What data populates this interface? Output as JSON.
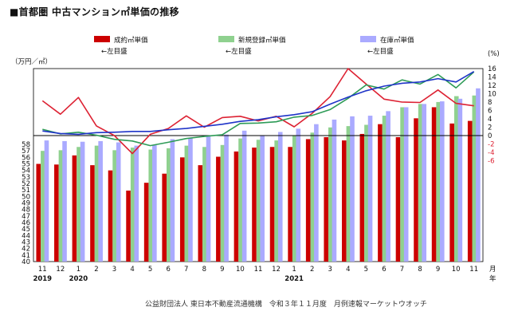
{
  "chart_title": "■首都圏 中古マンション㎡単価の推移",
  "source_note": "公益財団法人 東日本不動産流通機構　令和３年１１月度　月例速報マーケットウオッチ",
  "colors": {
    "contract": "#cc0000",
    "new_listing": "#8fd18f",
    "inventory": "#aaaaff",
    "contract_line": "#dd2233",
    "new_line": "#2e9b57",
    "inventory_line": "#1f34c8",
    "axis": "#000000",
    "zero_line": "#000000"
  },
  "chart_data": {
    "type": "bar",
    "title": "■首都圏 中古マンション㎡単価の推移",
    "y_left_unit": "（万円／㎡）",
    "y_right_unit": "(%)",
    "ylim_left": [
      40,
      58
    ],
    "ylim_right": [
      -6,
      16
    ],
    "ticks_left": [
      "40",
      "41",
      "42",
      "43",
      "44",
      "45",
      "46",
      "47",
      "48",
      "49",
      "50",
      "51",
      "52",
      "53",
      "54",
      "55",
      "56",
      "57",
      "58"
    ],
    "ticks_right": [
      "16",
      "14",
      "12",
      "10",
      "8",
      "6",
      "4",
      "2",
      "0",
      "-2",
      "-4",
      "-6"
    ],
    "categories": [
      "11",
      "12",
      "1",
      "2",
      "3",
      "4",
      "5",
      "6",
      "7",
      "8",
      "9",
      "10",
      "11",
      "12",
      "1",
      "2",
      "3",
      "4",
      "5",
      "6",
      "7",
      "8",
      "9",
      "10",
      "11"
    ],
    "year_labels": [
      {
        "label": "2019",
        "index": 0
      },
      {
        "label": "2020",
        "index": 2
      },
      {
        "label": "2021",
        "index": 14
      }
    ],
    "month_suffix": "月",
    "year_suffix": "年",
    "legend": [
      {
        "label": "成約㎡単価",
        "sub": "←左目盛",
        "kind": "bar",
        "color_key": "contract"
      },
      {
        "label": "新規登録㎡単価",
        "sub": "←左目盛",
        "kind": "bar",
        "color_key": "new_listing"
      },
      {
        "label": "在庫㎡単価",
        "sub": "←左目盛",
        "kind": "bar",
        "color_key": "inventory"
      }
    ],
    "bar_series": [
      {
        "name": "成約㎡単価",
        "color_key": "contract",
        "values": [
          55.0,
          54.9,
          56.3,
          54.8,
          54.0,
          50.9,
          52.1,
          53.5,
          56.0,
          54.8,
          56.1,
          56.9,
          57.5,
          57.6,
          57.6,
          58.8,
          59.1,
          58.6,
          59.6,
          61.1,
          59.1,
          62.0,
          63.7,
          61.2,
          61.6
        ]
      },
      {
        "name": "新規登録㎡単価",
        "color_key": "new_listing",
        "values": [
          57.0,
          57.1,
          57.6,
          57.8,
          57.1,
          57.5,
          57.2,
          57.4,
          57.8,
          57.6,
          57.9,
          58.9,
          58.7,
          58.6,
          59.3,
          59.8,
          60.6,
          60.8,
          61.0,
          62.4,
          63.7,
          64.2,
          64.5,
          65.4,
          65.5
        ]
      },
      {
        "name": "在庫㎡単価",
        "color_key": "inventory",
        "values": [
          58.6,
          58.5,
          58.4,
          58.5,
          58.3,
          57.8,
          57.9,
          58.8,
          59.0,
          59.2,
          59.5,
          60.1,
          59.4,
          59.9,
          60.4,
          61.1,
          61.8,
          62.3,
          62.4,
          63.1,
          63.7,
          64.2,
          64.6,
          65.0,
          66.6
        ]
      }
    ],
    "line_series": [
      {
        "color_key": "contract_line",
        "values": [
          8.3,
          5.1,
          9.1,
          2.3,
          0.0,
          -4.3,
          0.3,
          1.7,
          4.7,
          2.0,
          4.3,
          4.6,
          3.5,
          4.6,
          2.1,
          5.3,
          9.3,
          16.0,
          12.3,
          8.7,
          8.0,
          7.9,
          10.9,
          7.7,
          7.1
        ]
      },
      {
        "color_key": "new_line",
        "values": [
          1.5,
          0.4,
          0.8,
          0.1,
          -0.9,
          -1.3,
          -2.4,
          -1.6,
          -0.7,
          -0.2,
          0.2,
          2.9,
          3.0,
          3.3,
          4.4,
          4.8,
          6.2,
          8.9,
          12.1,
          11.1,
          13.3,
          12.3,
          14.6,
          11.4,
          15.2
        ]
      },
      {
        "color_key": "inventory_line",
        "values": [
          1.1,
          0.5,
          0.3,
          0.7,
          0.8,
          1.0,
          1.0,
          1.4,
          1.7,
          2.2,
          2.7,
          3.4,
          3.8,
          4.5,
          5.0,
          5.7,
          7.5,
          9.2,
          10.7,
          11.8,
          12.5,
          12.8,
          13.6,
          12.8,
          15.3
        ]
      }
    ]
  }
}
